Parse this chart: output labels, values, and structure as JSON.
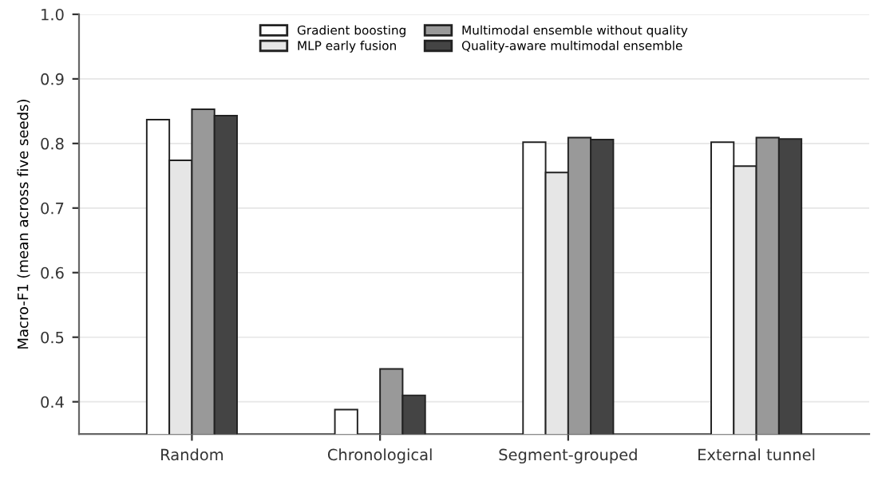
{
  "chart_data": {
    "type": "bar",
    "ylabel": "Macro-F1 (mean across five seeds)",
    "categories": [
      "Random",
      "Chronological",
      "Segment-grouped",
      "External tunnel"
    ],
    "series": [
      {
        "name": "Gradient boosting",
        "color": "#ffffff",
        "values": [
          0.837,
          0.388,
          0.802,
          0.802
        ]
      },
      {
        "name": "MLP early fusion",
        "color": "#e6e6e6",
        "values": [
          0.774,
          null,
          0.755,
          0.765
        ]
      },
      {
        "name": "Multimodal ensemble without quality",
        "color": "#999999",
        "values": [
          0.853,
          0.451,
          0.809,
          0.809
        ]
      },
      {
        "name": "Quality-aware multimodal ensemble",
        "color": "#444444",
        "values": [
          0.843,
          0.41,
          0.806,
          0.807
        ]
      }
    ],
    "ylim": [
      0.35,
      1.0
    ],
    "yticks": [
      0.4,
      0.5,
      0.6,
      0.7,
      0.8,
      0.9,
      {
        "value": 1.0,
        "label": "1.0"
      }
    ],
    "grid": "y",
    "legend": "top"
  }
}
